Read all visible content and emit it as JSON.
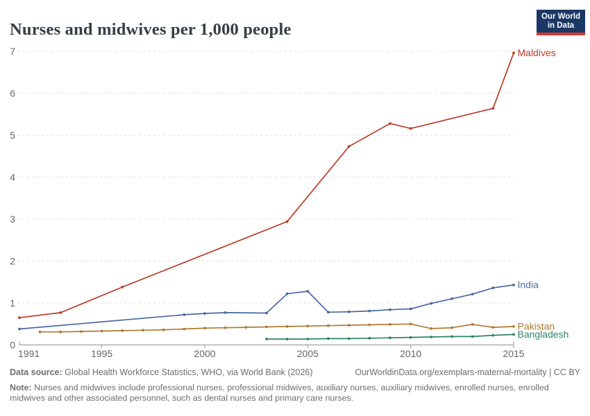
{
  "header": {
    "title": "Nurses and midwives per 1,000 people",
    "logo": {
      "line1": "Our World",
      "line2": "in Data",
      "bg_color": "#1a3866",
      "accent_color": "#d7382e"
    }
  },
  "chart_data": {
    "type": "line",
    "title": "Nurses and midwives per 1,000 people",
    "xlabel": "",
    "ylabel": "",
    "ylim": [
      0,
      7
    ],
    "xlim": [
      1990.8,
      2015.3
    ],
    "y_ticks": [
      0,
      1,
      2,
      3,
      4,
      5,
      6,
      7
    ],
    "x_ticks": [
      1991,
      1995,
      2000,
      2005,
      2010,
      2015
    ],
    "grid": "horizontal-dashed",
    "legend_position": "end-of-line-labels",
    "series": [
      {
        "name": "Maldives",
        "color": "#b93c26",
        "points": [
          [
            1991,
            0.65
          ],
          [
            1993,
            0.77
          ],
          [
            1996,
            1.38
          ],
          [
            2004,
            2.94
          ],
          [
            2007,
            4.73
          ],
          [
            2009,
            5.28
          ],
          [
            2010,
            5.16
          ],
          [
            2014,
            5.64
          ],
          [
            2015,
            6.96
          ]
        ]
      },
      {
        "name": "India",
        "color": "#4a68a2",
        "points": [
          [
            1991,
            0.38
          ],
          [
            1999,
            0.72
          ],
          [
            2000,
            0.75
          ],
          [
            2001,
            0.77
          ],
          [
            2003,
            0.76
          ],
          [
            2004,
            1.22
          ],
          [
            2005,
            1.28
          ],
          [
            2006,
            0.78
          ],
          [
            2007,
            0.79
          ],
          [
            2008,
            0.81
          ],
          [
            2009,
            0.84
          ],
          [
            2010,
            0.86
          ],
          [
            2011,
            0.99
          ],
          [
            2012,
            1.1
          ],
          [
            2013,
            1.21
          ],
          [
            2014,
            1.36
          ],
          [
            2015,
            1.43
          ]
        ]
      },
      {
        "name": "Pakistan",
        "color": "#ad7a31",
        "points": [
          [
            1992,
            0.31
          ],
          [
            1993,
            0.31
          ],
          [
            1994,
            0.32
          ],
          [
            1995,
            0.33
          ],
          [
            1996,
            0.34
          ],
          [
            1997,
            0.35
          ],
          [
            1998,
            0.36
          ],
          [
            1999,
            0.38
          ],
          [
            2000,
            0.4
          ],
          [
            2001,
            0.41
          ],
          [
            2002,
            0.42
          ],
          [
            2003,
            0.43
          ],
          [
            2004,
            0.44
          ],
          [
            2005,
            0.45
          ],
          [
            2006,
            0.46
          ],
          [
            2007,
            0.47
          ],
          [
            2008,
            0.48
          ],
          [
            2009,
            0.49
          ],
          [
            2010,
            0.5
          ],
          [
            2011,
            0.39
          ],
          [
            2012,
            0.41
          ],
          [
            2013,
            0.49
          ],
          [
            2014,
            0.42
          ],
          [
            2015,
            0.44
          ]
        ]
      },
      {
        "name": "Bangladesh",
        "color": "#2c8465",
        "points": [
          [
            2003,
            0.14
          ],
          [
            2004,
            0.14
          ],
          [
            2005,
            0.14
          ],
          [
            2006,
            0.15
          ],
          [
            2007,
            0.15
          ],
          [
            2008,
            0.16
          ],
          [
            2009,
            0.17
          ],
          [
            2010,
            0.18
          ],
          [
            2011,
            0.19
          ],
          [
            2012,
            0.2
          ],
          [
            2013,
            0.2
          ],
          [
            2014,
            0.23
          ],
          [
            2015,
            0.25
          ]
        ]
      }
    ]
  },
  "footer": {
    "data_source_label": "Data source:",
    "data_source": "Global Health Workforce Statistics, WHO, via World Bank (2026)",
    "attribution": "OurWorldinData.org/exemplars-maternal-mortality | CC BY",
    "note_label": "Note:",
    "note": "Nurses and midwives include professional nurses, professional midwives, auxiliary nurses, auxiliary midwives, enrolled nurses, enrolled midwives and other associated personnel, such as dental nurses and primary care nurses."
  },
  "colors": {
    "grid": "#dcdcdc",
    "axis": "#8f8f8f",
    "tick_label": "#666666",
    "title": "#373d45",
    "footer_text": "#6d6d6d"
  }
}
